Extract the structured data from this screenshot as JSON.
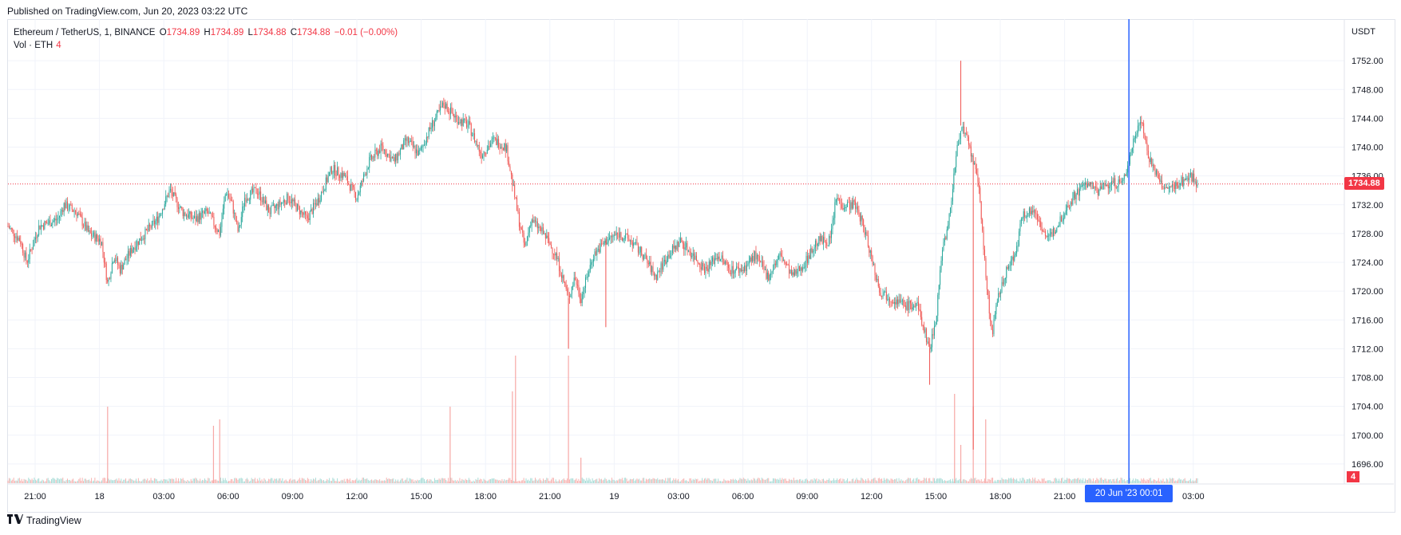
{
  "header": {
    "published": "Published on TradingView.com, Jun 20, 2023 03:22 UTC"
  },
  "legend": {
    "symbol": "Ethereum / TetherUS, 1, BINANCE",
    "o_label": "O",
    "o": "1734.89",
    "h_label": "H",
    "h": "1734.89",
    "l_label": "L",
    "l": "1734.88",
    "c_label": "C",
    "c": "1734.88",
    "change": "−0.01 (−0.00%)",
    "vol_label": "Vol · ETH",
    "vol_value": "4"
  },
  "axis": {
    "currency": "USDT",
    "last_price_tag": "1734.88",
    "volume_tag": "4",
    "crosshair_time": "20 Jun '23  00:01"
  },
  "footer": {
    "brand": "TradingView"
  },
  "colors": {
    "up": "#26a69a",
    "down": "#ef5350",
    "crosshair": "#2962ff",
    "last_price": "#f23645",
    "grid": "#f0f3fa"
  },
  "chart_data": {
    "type": "candlestick",
    "y_ticks": [
      "1696.00",
      "1700.00",
      "1704.00",
      "1708.00",
      "1712.00",
      "1716.00",
      "1720.00",
      "1724.00",
      "1728.00",
      "1732.00",
      "1736.00",
      "1740.00",
      "1744.00",
      "1748.00",
      "1752.00"
    ],
    "ylim": [
      1694,
      1756
    ],
    "x_ticks": [
      "21:00",
      "18",
      "03:00",
      "06:00",
      "09:00",
      "12:00",
      "15:00",
      "18:00",
      "21:00",
      "19",
      "03:00",
      "06:00",
      "09:00",
      "12:00",
      "15:00",
      "18:00",
      "21:00",
      "03:00"
    ],
    "price_path": [
      [
        0,
        1729
      ],
      [
        2,
        1727
      ],
      [
        3,
        1724
      ],
      [
        5,
        1729
      ],
      [
        8,
        1730
      ],
      [
        9,
        1732
      ],
      [
        11,
        1731
      ],
      [
        13,
        1728
      ],
      [
        15,
        1727
      ],
      [
        16,
        1721
      ],
      [
        17,
        1725
      ],
      [
        18,
        1723
      ],
      [
        20,
        1726
      ],
      [
        22,
        1728
      ],
      [
        24,
        1730
      ],
      [
        26,
        1734
      ],
      [
        28,
        1731
      ],
      [
        30,
        1730
      ],
      [
        32,
        1731
      ],
      [
        34,
        1728
      ],
      [
        35,
        1734
      ],
      [
        36,
        1732
      ],
      [
        37,
        1728
      ],
      [
        38,
        1733
      ],
      [
        40,
        1734
      ],
      [
        42,
        1731
      ],
      [
        45,
        1733
      ],
      [
        48,
        1730
      ],
      [
        50,
        1733
      ],
      [
        52,
        1737
      ],
      [
        54,
        1736
      ],
      [
        56,
        1733
      ],
      [
        58,
        1738
      ],
      [
        60,
        1740
      ],
      [
        62,
        1738
      ],
      [
        64,
        1741
      ],
      [
        66,
        1739
      ],
      [
        68,
        1743
      ],
      [
        70,
        1746
      ],
      [
        72,
        1744
      ],
      [
        74,
        1743
      ],
      [
        76,
        1739
      ],
      [
        78,
        1741
      ],
      [
        80,
        1740
      ],
      [
        81,
        1735
      ],
      [
        82,
        1730
      ],
      [
        83,
        1726
      ],
      [
        84,
        1730
      ],
      [
        86,
        1728
      ],
      [
        88,
        1725
      ],
      [
        90,
        1719
      ],
      [
        91,
        1722
      ],
      [
        92,
        1719
      ],
      [
        94,
        1725
      ],
      [
        96,
        1727
      ],
      [
        98,
        1728
      ],
      [
        100,
        1727
      ],
      [
        102,
        1725
      ],
      [
        104,
        1722
      ],
      [
        106,
        1725
      ],
      [
        108,
        1727
      ],
      [
        110,
        1725
      ],
      [
        112,
        1723
      ],
      [
        114,
        1725
      ],
      [
        116,
        1723
      ],
      [
        118,
        1723
      ],
      [
        120,
        1725
      ],
      [
        122,
        1722
      ],
      [
        124,
        1725
      ],
      [
        126,
        1722
      ],
      [
        128,
        1724
      ],
      [
        130,
        1727
      ],
      [
        132,
        1727
      ],
      [
        133,
        1733
      ],
      [
        134,
        1732
      ],
      [
        136,
        1732
      ],
      [
        137,
        1730
      ],
      [
        138,
        1727
      ],
      [
        140,
        1720
      ],
      [
        142,
        1719
      ],
      [
        144,
        1718
      ],
      [
        146,
        1718
      ],
      [
        148,
        1712
      ],
      [
        149,
        1716
      ],
      [
        150,
        1726
      ],
      [
        151,
        1729
      ],
      [
        152,
        1737
      ],
      [
        153,
        1743
      ],
      [
        154,
        1741
      ],
      [
        155,
        1738
      ],
      [
        156,
        1734
      ],
      [
        157,
        1722
      ],
      [
        158,
        1714
      ],
      [
        159,
        1719
      ],
      [
        160,
        1722
      ],
      [
        162,
        1726
      ],
      [
        163,
        1731
      ],
      [
        165,
        1731
      ],
      [
        167,
        1727
      ],
      [
        169,
        1730
      ],
      [
        171,
        1733
      ],
      [
        173,
        1735
      ],
      [
        175,
        1734
      ],
      [
        177,
        1735
      ],
      [
        179,
        1735
      ],
      [
        180,
        1738
      ],
      [
        181,
        1742
      ],
      [
        182,
        1744
      ],
      [
        183,
        1739
      ],
      [
        184,
        1737
      ],
      [
        185,
        1735
      ],
      [
        186,
        1734
      ],
      [
        188,
        1735
      ],
      [
        190,
        1736
      ],
      [
        191,
        1735
      ]
    ],
    "spikes": [
      {
        "x": 90,
        "low": 1712
      },
      {
        "x": 96,
        "low": 1715
      },
      {
        "x": 153,
        "high": 1752
      },
      {
        "x": 155,
        "low": 1698
      },
      {
        "x": 148,
        "low": 1707
      }
    ],
    "last_price": 1734.88,
    "crosshair_x": 180,
    "volume_spikes": [
      [
        16,
        0.6
      ],
      [
        33,
        0.45
      ],
      [
        34,
        0.5
      ],
      [
        71,
        0.6
      ],
      [
        81,
        0.72
      ],
      [
        81.5,
        1
      ],
      [
        90,
        1
      ],
      [
        92,
        0.2
      ],
      [
        152,
        0.7
      ],
      [
        153,
        0.3
      ],
      [
        155,
        0.6
      ],
      [
        157,
        0.5
      ]
    ],
    "x_max": 191
  }
}
